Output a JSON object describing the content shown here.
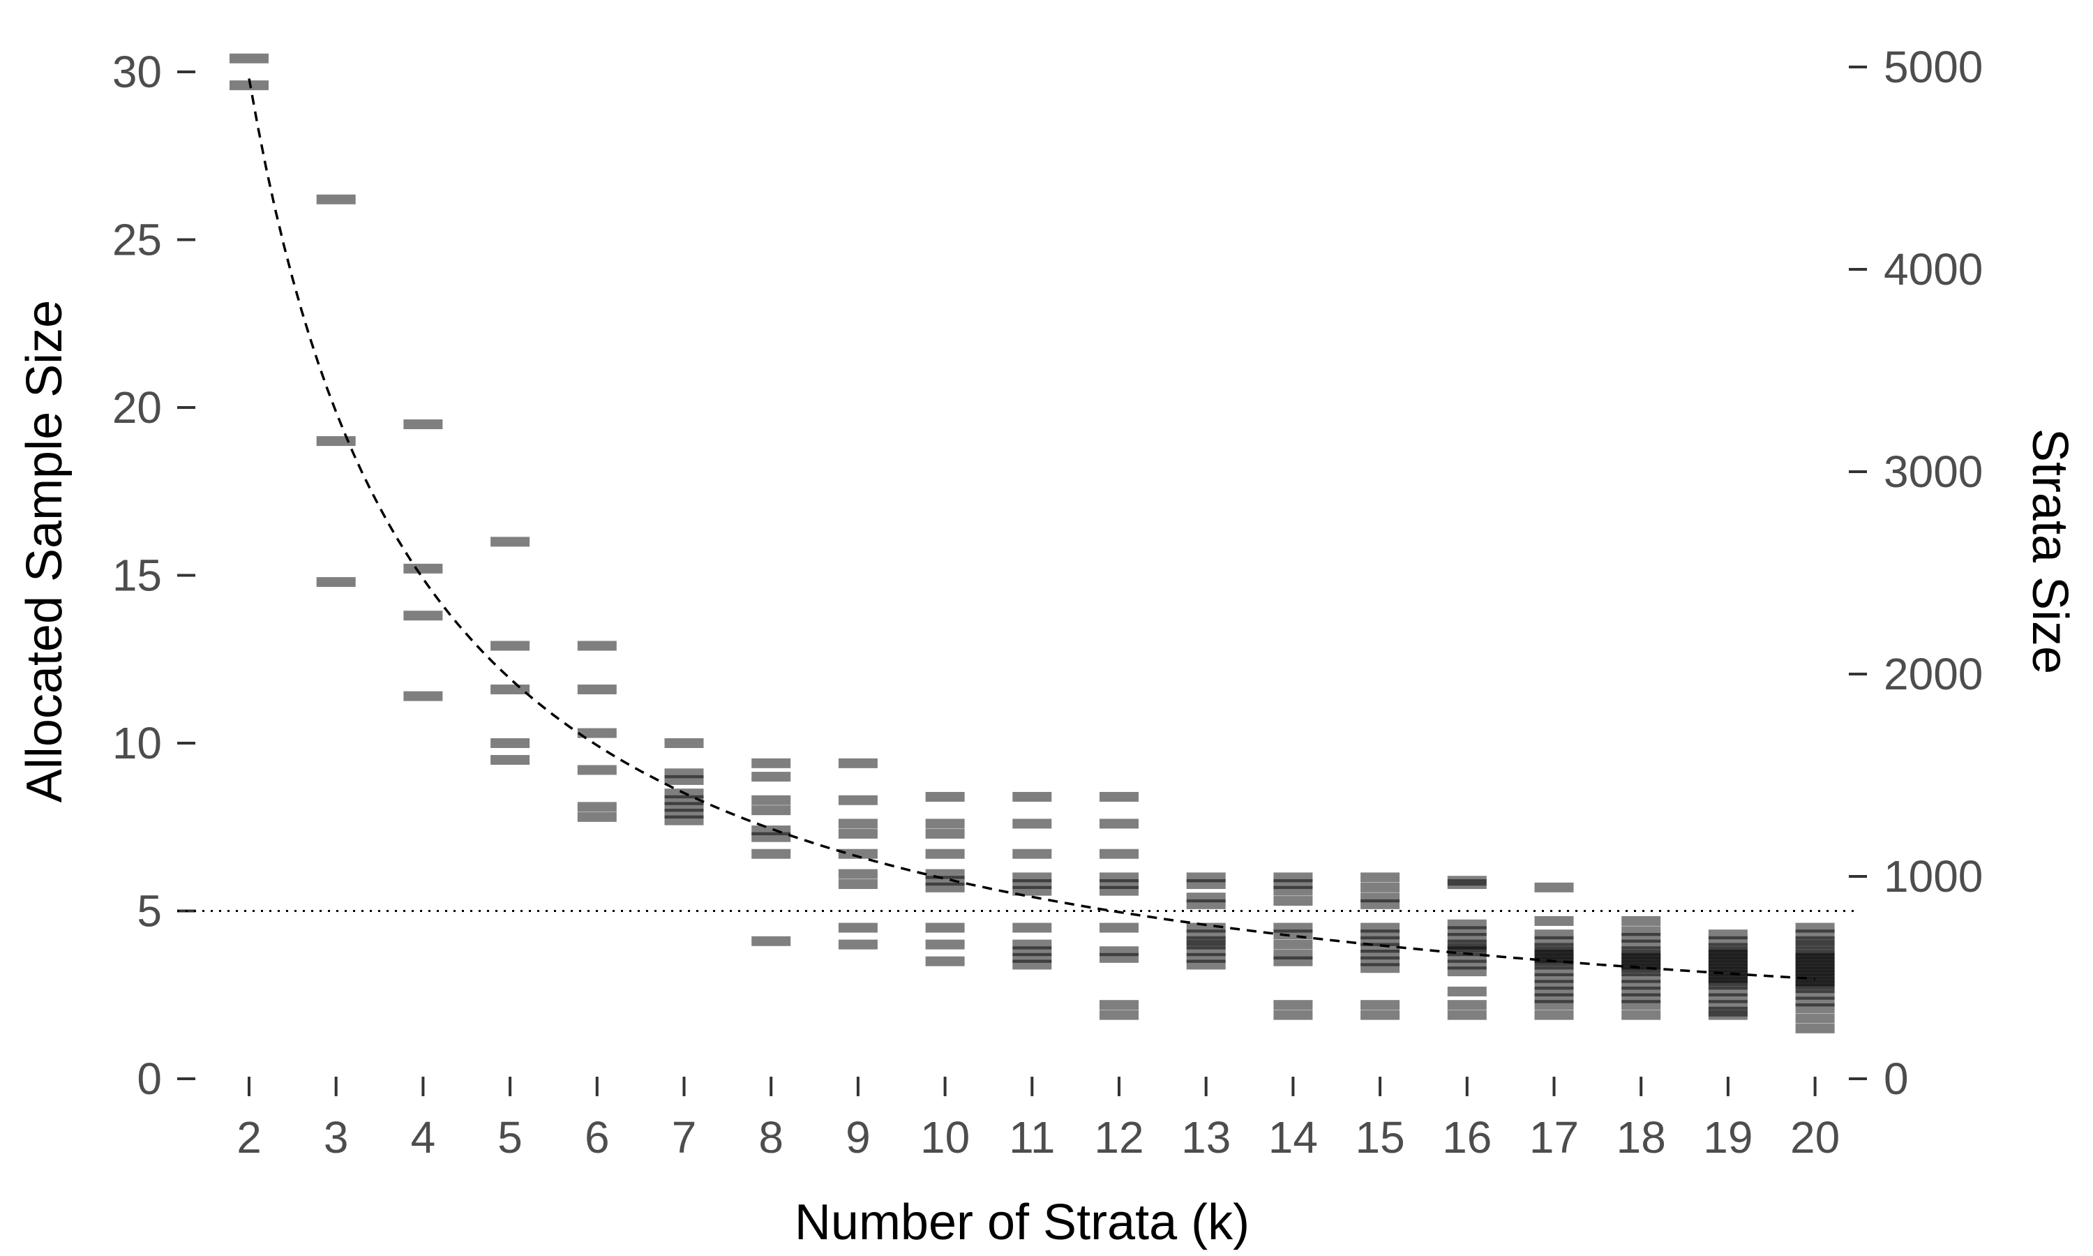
{
  "chart_data": {
    "type": "scatter",
    "title": "",
    "xlabel": "Number of Strata (k)",
    "ylabel": "Allocated Sample Size",
    "y2label": "Strata Size",
    "x_ticks": [
      "2",
      "3",
      "4",
      "5",
      "6",
      "7",
      "8",
      "9",
      "10",
      "11",
      "12",
      "13",
      "14",
      "15",
      "16",
      "17",
      "18",
      "19",
      "20"
    ],
    "y_ticks": [
      "0",
      "5",
      "10",
      "15",
      "20",
      "25",
      "30"
    ],
    "y2_ticks": [
      "0",
      "1000",
      "2000",
      "3000",
      "4000",
      "5000"
    ],
    "ylim": [
      0,
      30.5
    ],
    "y2lim": [
      0,
      5000
    ],
    "grid": false,
    "reference_line": {
      "y": 5,
      "style": "dotted"
    },
    "curve": {
      "name": "",
      "style": "dashed",
      "formula_note": "",
      "x": [
        2,
        3,
        4,
        5,
        6,
        7,
        8,
        9,
        10,
        11,
        12,
        13,
        14,
        15,
        16,
        17,
        18,
        19,
        20
      ],
      "y": [
        29.8,
        19.9,
        14.9,
        11.9,
        9.9,
        8.5,
        7.5,
        6.6,
        6.0,
        5.4,
        5.0,
        4.6,
        4.3,
        4.0,
        3.7,
        3.5,
        3.3,
        3.1,
        3.0
      ]
    },
    "series": [
      {
        "name": "",
        "points": [
          {
            "x": 2,
            "y": [
              30.4,
              29.6
            ]
          },
          {
            "x": 3,
            "y": [
              26.2,
              19.0,
              14.8
            ]
          },
          {
            "x": 4,
            "y": [
              19.5,
              15.2,
              13.8,
              11.4
            ]
          },
          {
            "x": 5,
            "y": [
              16.0,
              12.9,
              11.6,
              10.0,
              9.5
            ]
          },
          {
            "x": 6,
            "y": [
              12.9,
              11.6,
              10.3,
              9.2,
              8.1,
              7.8
            ]
          },
          {
            "x": 7,
            "y": [
              10.0,
              9.1,
              8.9,
              8.5,
              8.3,
              8.1,
              7.9,
              7.7
            ]
          },
          {
            "x": 8,
            "y": [
              9.4,
              9.0,
              8.3,
              8.0,
              7.4,
              7.2,
              6.7,
              4.1
            ]
          },
          {
            "x": 9,
            "y": [
              9.4,
              8.3,
              7.6,
              7.3,
              6.7,
              6.1,
              5.8,
              4.5,
              4.0
            ]
          },
          {
            "x": 10,
            "y": [
              8.4,
              7.6,
              7.3,
              6.7,
              6.1,
              5.9,
              5.7,
              4.5,
              4.0,
              3.5
            ]
          },
          {
            "x": 11,
            "y": [
              8.4,
              7.6,
              6.7,
              6.0,
              5.8,
              5.6,
              4.5,
              4.0,
              3.8,
              3.6,
              3.4
            ]
          },
          {
            "x": 12,
            "y": [
              8.4,
              7.6,
              6.7,
              6.0,
              5.8,
              5.6,
              4.5,
              3.8,
              3.6,
              2.2,
              1.9
            ]
          },
          {
            "x": 13,
            "y": [
              6.0,
              5.8,
              5.4,
              5.2,
              4.5,
              4.3,
              4.1,
              4.0,
              3.8,
              3.6,
              3.4
            ]
          },
          {
            "x": 14,
            "y": [
              6.0,
              5.8,
              5.6,
              5.3,
              4.5,
              4.3,
              4.0,
              3.7,
              3.5,
              2.2,
              1.9
            ]
          },
          {
            "x": 15,
            "y": [
              6.0,
              5.7,
              5.4,
              5.2,
              4.5,
              4.3,
              4.1,
              3.9,
              3.7,
              3.5,
              3.3,
              2.2,
              1.9
            ]
          },
          {
            "x": 16,
            "y": [
              5.9,
              5.8,
              4.6,
              4.4,
              4.2,
              4.0,
              3.9,
              3.8,
              3.6,
              3.4,
              3.2,
              2.6,
              2.2,
              1.9
            ]
          },
          {
            "x": 17,
            "y": [
              5.7,
              4.7,
              4.3,
              4.1,
              3.9,
              3.8,
              3.7,
              3.6,
              3.5,
              3.4,
              3.2,
              3.0,
              2.8,
              2.6,
              2.4,
              2.2,
              1.9
            ]
          },
          {
            "x": 18,
            "y": [
              4.7,
              4.4,
              4.2,
              4.0,
              3.8,
              3.7,
              3.6,
              3.5,
              3.4,
              3.3,
              3.2,
              3.0,
              2.8,
              2.6,
              2.4,
              2.2,
              1.9
            ]
          },
          {
            "x": 19,
            "y": [
              4.3,
              4.1,
              3.9,
              3.8,
              3.7,
              3.6,
              3.5,
              3.4,
              3.3,
              3.2,
              3.1,
              3.0,
              2.9,
              2.8,
              2.6,
              2.4,
              2.2,
              2.0,
              1.9
            ]
          },
          {
            "x": 20,
            "y": [
              4.5,
              4.3,
              4.1,
              4.0,
              3.8,
              3.7,
              3.6,
              3.5,
              3.4,
              3.3,
              3.2,
              3.1,
              3.0,
              2.9,
              2.8,
              2.7,
              2.5,
              2.3,
              2.1,
              1.8,
              1.5
            ]
          }
        ]
      }
    ],
    "colors": {
      "marks": "#000000",
      "text": "#4d4d4d"
    }
  }
}
